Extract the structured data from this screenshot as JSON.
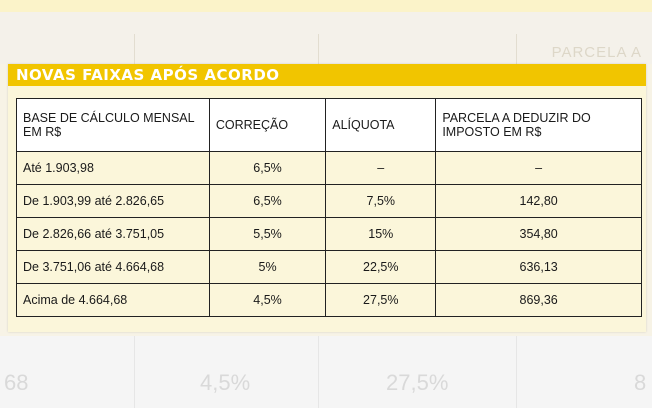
{
  "title": "NOVAS FAIXAS APÓS ACORDO",
  "headers": [
    "BASE DE CÁLCULO MENSAL EM R$",
    "CORREÇÃO",
    "ALÍQUOTA",
    "PARCELA A DEDUZIR DO IMPOSTO EM R$"
  ],
  "rows": [
    {
      "base": "Até 1.903,98",
      "correcao": "6,5%",
      "aliquota": "–",
      "parcela": "–"
    },
    {
      "base": "De 1.903,99 até 2.826,65",
      "correcao": "6,5%",
      "aliquota": "7,5%",
      "parcela": "142,80"
    },
    {
      "base": "De 2.826,66 até 3.751,05",
      "correcao": "5,5%",
      "aliquota": "15%",
      "parcela": "354,80"
    },
    {
      "base": "De 3.751,06 até 4.664,68",
      "correcao": "5%",
      "aliquota": "22,5%",
      "parcela": "636,13"
    },
    {
      "base": "Acima de 4.664,68",
      "correcao": "4,5%",
      "aliquota": "27,5%",
      "parcela": "869,36"
    }
  ],
  "ghost": {
    "top_right": "PARCELA A",
    "bottom": [
      "68",
      "4,5%",
      "27,5%",
      "8"
    ]
  }
}
